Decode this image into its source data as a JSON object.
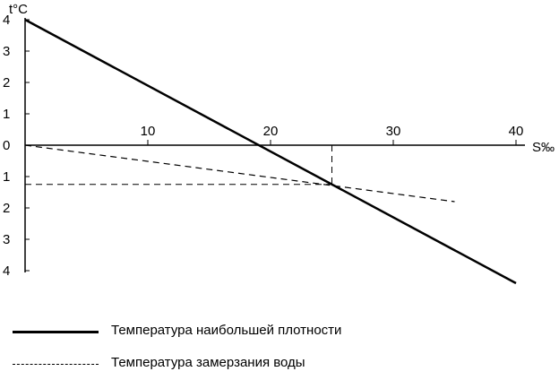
{
  "chart_data": {
    "type": "line",
    "xlabel": "S‰",
    "ylabel": "t°C",
    "xlim": [
      0,
      40
    ],
    "ylim": [
      -4,
      4
    ],
    "x_ticks": [
      10,
      20,
      30,
      40
    ],
    "y_ticks": [
      4,
      3,
      2,
      1,
      0,
      -1,
      -2,
      -3,
      -4
    ],
    "y_tick_labels": [
      "4",
      "3",
      "2",
      "1",
      "0",
      "1",
      "2",
      "3",
      "4"
    ],
    "grid": false,
    "legend_position": "bottom-left",
    "series": [
      {
        "name": "Температура наибольшей плотности",
        "style": "solid",
        "x": [
          0,
          40
        ],
        "y": [
          4.0,
          -4.4
        ]
      },
      {
        "name": "Температура замерзания воды",
        "style": "dashed",
        "x": [
          0,
          35
        ],
        "y": [
          0.0,
          -1.8
        ]
      }
    ],
    "annotations": [
      {
        "type": "horizontal-dashed",
        "x": [
          0,
          25
        ],
        "y": -1.25
      },
      {
        "type": "vertical-dashed",
        "x": 25,
        "y": [
          0,
          -1.25
        ]
      }
    ],
    "colors": {
      "line": "#000000"
    }
  }
}
